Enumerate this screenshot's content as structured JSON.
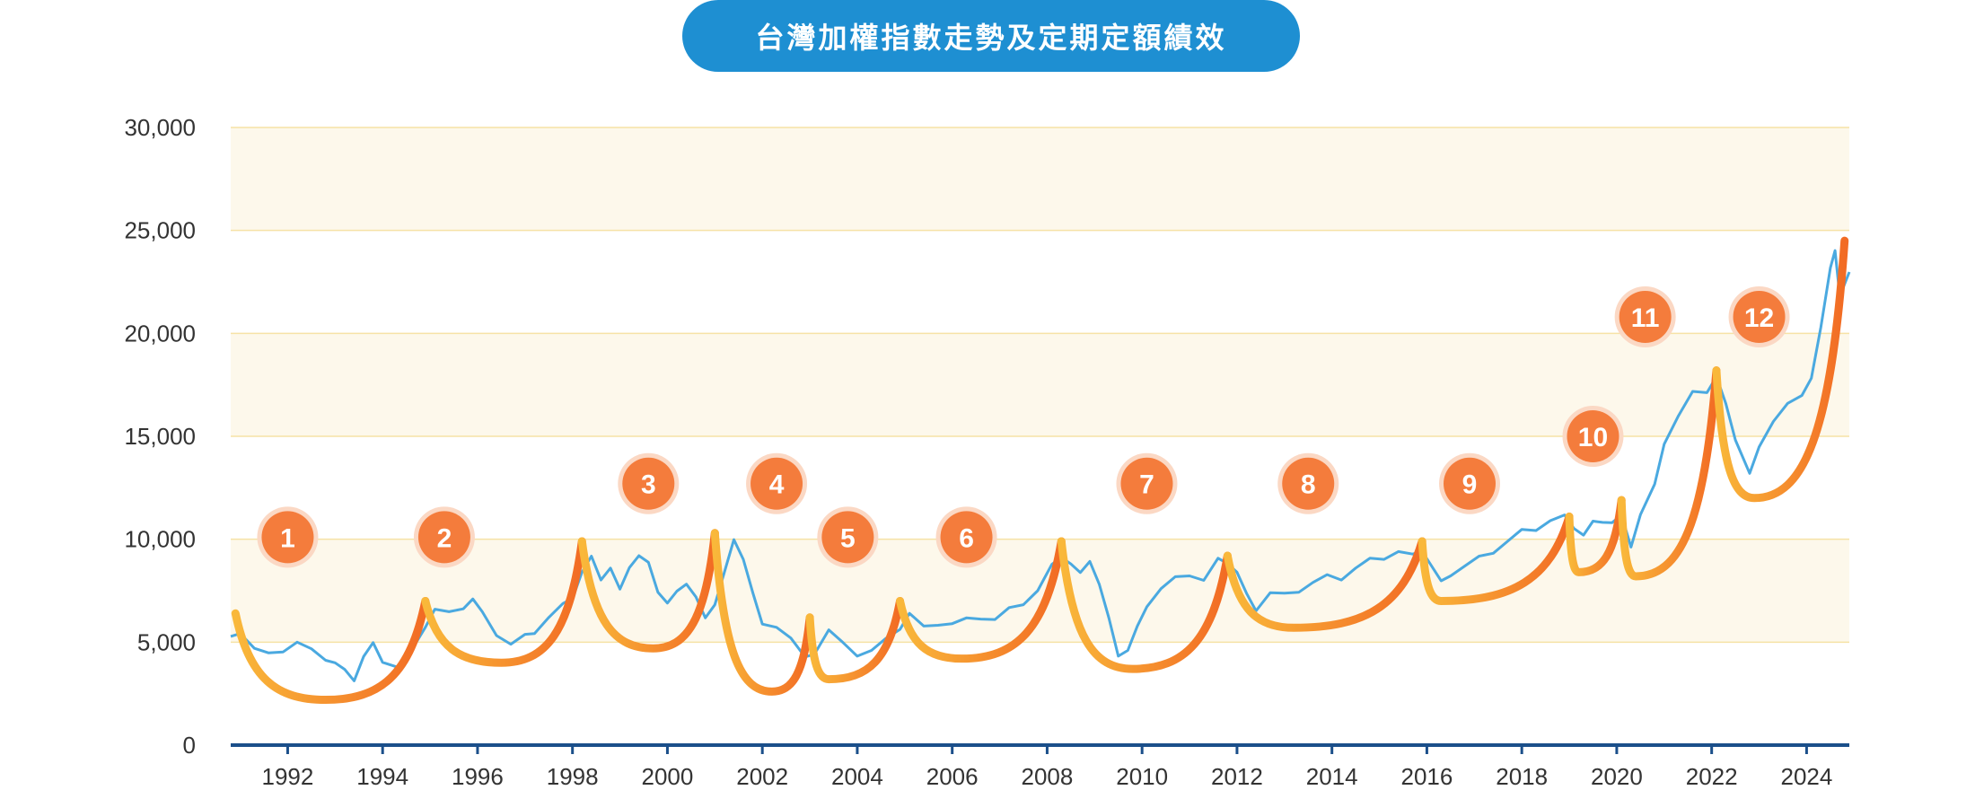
{
  "title": "台灣加權指數走勢及定期定額績效",
  "colors": {
    "title_bg": "#1e8fd2",
    "band": "#fdf8eb",
    "gridline": "#f6e2a6",
    "index_line": "#4aa9e0",
    "axis": "#1b4f8a",
    "badge": "#f47c3c",
    "badge_ring": "#fbd8c4",
    "arc_start": "#f9b83a",
    "arc_end": "#f26b24"
  },
  "chart_data": {
    "type": "line",
    "xlim": [
      1990.8,
      2024.9
    ],
    "ylim": [
      0,
      30000
    ],
    "y_ticks": [
      0,
      5000,
      10000,
      15000,
      20000,
      25000,
      30000
    ],
    "y_tick_labels": [
      "0",
      "5,000",
      "10,000",
      "15,000",
      "20,000",
      "25,000",
      "30,000"
    ],
    "x_ticks": [
      1992,
      1994,
      1996,
      1998,
      2000,
      2002,
      2004,
      2006,
      2008,
      2010,
      2012,
      2014,
      2016,
      2018,
      2020,
      2022,
      2024
    ],
    "x_tick_labels": [
      "1992",
      "1994",
      "1996",
      "1998",
      "2000",
      "2002",
      "2004",
      "2006",
      "2008",
      "2010",
      "2012",
      "2014",
      "2016",
      "2018",
      "2020",
      "2022",
      "2024"
    ],
    "grid": true,
    "series": [
      {
        "values": [
          [
            1990.8,
            5100
          ],
          [
            1991.0,
            5600
          ],
          [
            1991.3,
            4700
          ],
          [
            1991.6,
            4300
          ],
          [
            1991.9,
            4700
          ],
          [
            1992.2,
            5000
          ],
          [
            1992.5,
            4500
          ],
          [
            1992.8,
            4300
          ],
          [
            1993.0,
            4000
          ],
          [
            1993.2,
            3500
          ],
          [
            1993.4,
            3300
          ],
          [
            1993.6,
            4300
          ],
          [
            1993.8,
            4800
          ],
          [
            1994.0,
            4200
          ],
          [
            1994.3,
            3800
          ],
          [
            1994.6,
            4400
          ],
          [
            1994.9,
            5900
          ],
          [
            1995.1,
            6600
          ],
          [
            1995.4,
            6300
          ],
          [
            1995.7,
            6800
          ],
          [
            1995.9,
            7100
          ],
          [
            1996.1,
            6300
          ],
          [
            1996.4,
            5500
          ],
          [
            1996.7,
            4900
          ],
          [
            1997.0,
            5200
          ],
          [
            1997.2,
            5600
          ],
          [
            1997.5,
            6200
          ],
          [
            1997.8,
            6700
          ],
          [
            1998.0,
            7300
          ],
          [
            1998.2,
            8400
          ],
          [
            1998.4,
            9000
          ],
          [
            1998.6,
            8200
          ],
          [
            1998.8,
            8600
          ],
          [
            1999.0,
            7400
          ],
          [
            1999.2,
            8800
          ],
          [
            1999.4,
            9200
          ],
          [
            1999.6,
            8700
          ],
          [
            1999.8,
            7600
          ],
          [
            2000.0,
            6900
          ],
          [
            2000.2,
            7300
          ],
          [
            2000.4,
            8000
          ],
          [
            2000.6,
            7200
          ],
          [
            2000.8,
            6000
          ],
          [
            2001.0,
            7000
          ],
          [
            2001.2,
            8400
          ],
          [
            2001.4,
            9800
          ],
          [
            2001.6,
            9200
          ],
          [
            2001.8,
            7400
          ],
          [
            2002.0,
            5700
          ],
          [
            2002.3,
            5900
          ],
          [
            2002.6,
            5200
          ],
          [
            2002.9,
            4100
          ],
          [
            2003.1,
            4600
          ],
          [
            2003.4,
            5600
          ],
          [
            2003.7,
            4800
          ],
          [
            2004.0,
            4500
          ],
          [
            2004.3,
            4600
          ],
          [
            2004.6,
            5000
          ],
          [
            2004.9,
            5800
          ],
          [
            2005.1,
            6400
          ],
          [
            2005.4,
            5600
          ],
          [
            2005.7,
            6000
          ],
          [
            2006.0,
            5900
          ],
          [
            2006.3,
            6000
          ],
          [
            2006.6,
            6300
          ],
          [
            2006.9,
            6100
          ],
          [
            2007.2,
            6500
          ],
          [
            2007.5,
            7000
          ],
          [
            2007.8,
            7500
          ],
          [
            2008.1,
            8600
          ],
          [
            2008.3,
            9300
          ],
          [
            2008.5,
            8800
          ],
          [
            2008.7,
            8200
          ],
          [
            2008.9,
            9100
          ],
          [
            2009.1,
            7800
          ],
          [
            2009.3,
            6000
          ],
          [
            2009.5,
            4500
          ],
          [
            2009.7,
            4600
          ],
          [
            2009.9,
            5600
          ],
          [
            2010.1,
            6900
          ],
          [
            2010.4,
            7600
          ],
          [
            2010.7,
            8000
          ],
          [
            2011.0,
            8400
          ],
          [
            2011.3,
            8000
          ],
          [
            2011.6,
            8900
          ],
          [
            2011.8,
            9000
          ],
          [
            2012.0,
            8400
          ],
          [
            2012.2,
            7200
          ],
          [
            2012.4,
            6700
          ],
          [
            2012.7,
            7400
          ],
          [
            2013.0,
            7200
          ],
          [
            2013.3,
            7600
          ],
          [
            2013.6,
            7900
          ],
          [
            2013.9,
            8100
          ],
          [
            2014.2,
            8200
          ],
          [
            2014.5,
            8600
          ],
          [
            2014.8,
            8900
          ],
          [
            2015.1,
            9200
          ],
          [
            2015.4,
            9400
          ],
          [
            2015.7,
            9100
          ],
          [
            2015.9,
            9600
          ],
          [
            2016.1,
            8700
          ],
          [
            2016.3,
            7800
          ],
          [
            2016.5,
            8400
          ],
          [
            2016.8,
            8700
          ],
          [
            2017.1,
            9000
          ],
          [
            2017.4,
            9500
          ],
          [
            2017.7,
            9900
          ],
          [
            2018.0,
            10300
          ],
          [
            2018.3,
            10600
          ],
          [
            2018.6,
            10900
          ],
          [
            2018.9,
            11000
          ],
          [
            2019.1,
            10700
          ],
          [
            2019.3,
            10200
          ],
          [
            2019.5,
            10700
          ],
          [
            2019.7,
            11000
          ],
          [
            2019.9,
            10800
          ],
          [
            2020.1,
            11000
          ],
          [
            2020.3,
            9800
          ],
          [
            2020.5,
            11200
          ],
          [
            2020.8,
            12500
          ],
          [
            2021.0,
            14800
          ],
          [
            2021.3,
            16000
          ],
          [
            2021.6,
            17000
          ],
          [
            2021.9,
            17300
          ],
          [
            2022.1,
            17900
          ],
          [
            2022.3,
            16400
          ],
          [
            2022.5,
            15000
          ],
          [
            2022.8,
            13200
          ],
          [
            2023.0,
            14300
          ],
          [
            2023.3,
            15900
          ],
          [
            2023.6,
            16600
          ],
          [
            2023.9,
            16800
          ],
          [
            2024.1,
            18000
          ],
          [
            2024.3,
            20300
          ],
          [
            2024.5,
            23000
          ],
          [
            2024.6,
            24200
          ],
          [
            2024.7,
            21800
          ],
          [
            2024.9,
            22800
          ]
        ]
      }
    ],
    "investment_periods": [
      {
        "label": "1",
        "start": [
          1990.9,
          6400
        ],
        "min": [
          1992.8,
          2200
        ],
        "end": [
          1994.9,
          7000
        ],
        "badge": [
          1992.0,
          10100
        ]
      },
      {
        "label": "2",
        "start": [
          1994.9,
          7000
        ],
        "min": [
          1996.5,
          4000
        ],
        "end": [
          1998.2,
          9900
        ],
        "badge": [
          1995.3,
          10100
        ]
      },
      {
        "label": "3",
        "start": [
          1998.2,
          9900
        ],
        "min": [
          1999.7,
          4700
        ],
        "end": [
          2001.0,
          10300
        ],
        "badge": [
          1999.6,
          12700
        ]
      },
      {
        "label": "4",
        "start": [
          2001.0,
          10300
        ],
        "min": [
          2002.2,
          2600
        ],
        "end": [
          2003.0,
          6200
        ],
        "badge": [
          2002.3,
          12700
        ]
      },
      {
        "label": "5",
        "start": [
          2003.0,
          6200
        ],
        "min": [
          2003.4,
          3200
        ],
        "end": [
          2004.9,
          7000
        ],
        "badge": [
          2003.8,
          10100
        ]
      },
      {
        "label": "6",
        "start": [
          2004.9,
          7000
        ],
        "min": [
          2006.2,
          4200
        ],
        "end": [
          2008.3,
          9900
        ],
        "badge": [
          2006.3,
          10100
        ]
      },
      {
        "label": "7",
        "start": [
          2008.3,
          9900
        ],
        "min": [
          2009.8,
          3700
        ],
        "end": [
          2011.8,
          9200
        ],
        "badge": [
          2010.1,
          12700
        ]
      },
      {
        "label": "8",
        "start": [
          2011.8,
          9200
        ],
        "min": [
          2013.2,
          5700
        ],
        "end": [
          2015.9,
          9900
        ],
        "badge": [
          2013.5,
          12700
        ]
      },
      {
        "label": "9",
        "start": [
          2015.9,
          9900
        ],
        "min": [
          2016.3,
          7000
        ],
        "end": [
          2019.0,
          11100
        ],
        "badge": [
          2016.9,
          12700
        ]
      },
      {
        "label": "10",
        "start": [
          2019.0,
          11100
        ],
        "min": [
          2019.2,
          8400
        ],
        "end": [
          2020.1,
          11900
        ],
        "badge": [
          2019.5,
          15000
        ]
      },
      {
        "label": "11",
        "start": [
          2020.1,
          11900
        ],
        "min": [
          2020.4,
          8200
        ],
        "end": [
          2022.1,
          18200
        ],
        "badge": [
          2020.6,
          20800
        ]
      },
      {
        "label": "12",
        "start": [
          2022.1,
          18200
        ],
        "min": [
          2022.9,
          12000
        ],
        "end": [
          2024.8,
          24500
        ],
        "badge": [
          2023.0,
          20800
        ]
      }
    ]
  }
}
